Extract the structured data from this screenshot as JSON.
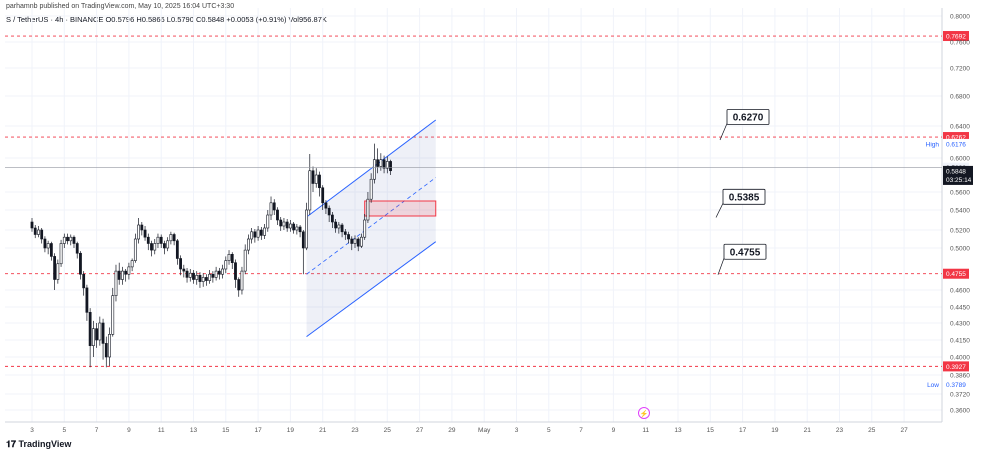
{
  "header": {
    "publish_text": "parhamnb published on TradingView.com, May 10, 2025 16:04 UTC+3:30",
    "symbol_text": "S / TetherUS · 4h · BINANCE  O0.5796  H0.5866  L0.5790  C0.5848  +0.0053 (+0.91%)  Vol956.87K"
  },
  "footer": {
    "logo_text": "TradingView"
  },
  "colors": {
    "up": "#26a69a",
    "down": "#131722",
    "level_line": "#f23645",
    "channel": "#2962ff",
    "zone": "#f23645"
  },
  "chart_data": {
    "type": "candlestick",
    "x_tick_labels": [
      "3",
      "5",
      "7",
      "9",
      "11",
      "13",
      "15",
      "17",
      "19",
      "21",
      "23",
      "25",
      "27",
      "29",
      "May",
      "3",
      "5",
      "7",
      "9",
      "11",
      "13",
      "15",
      "17",
      "19",
      "21",
      "23",
      "25",
      "27"
    ],
    "y_tick_labels": [
      "0.8000",
      "0.7600",
      "0.7200",
      "0.6800",
      "0.6400",
      "0.6000",
      "0.5600",
      "0.5400",
      "0.5200",
      "0.5000",
      "0.4600",
      "0.4450",
      "0.4300",
      "0.4150",
      "0.4000",
      "0.3860",
      "0.3720",
      "0.3600"
    ],
    "ylim": [
      0.352,
      0.806
    ],
    "horizontal_levels": [
      {
        "value": 0.7692,
        "label": "0.7692"
      },
      {
        "value": 0.6262,
        "label": "0.6262"
      },
      {
        "value": 0.4755,
        "label": "0.4755"
      },
      {
        "value": 0.3927,
        "label": "0.3927"
      }
    ],
    "price_badges": {
      "high_label": "High",
      "high_value": "0.6176",
      "low_label": "Low",
      "low_value": "0.3789",
      "last_value": "0.5848",
      "countdown": "03:25:14",
      "prev_value": "0.5886"
    },
    "annotations": [
      "0.6270",
      "0.5385",
      "0.4755"
    ],
    "channel": {
      "upper": [
        {
          "x": 10.5,
          "y": 0.533
        },
        {
          "x": 14.5,
          "y": 0.648
        }
      ],
      "lower": [
        {
          "x": 10.5,
          "y": 0.418
        },
        {
          "x": 14.5,
          "y": 0.507
        }
      ],
      "mid": [
        {
          "x": 10.5,
          "y": 0.475
        },
        {
          "x": 14.5,
          "y": 0.577
        }
      ]
    },
    "zone": {
      "x_from": 12.3,
      "x_to": 14.5,
      "y_from": 0.534,
      "y_to": 0.55
    },
    "candles": [
      [
        2,
        0.528,
        0.522,
        0.532,
        0.518
      ],
      [
        2.1,
        0.522,
        0.515,
        0.525,
        0.511
      ],
      [
        2.2,
        0.515,
        0.52,
        0.524,
        0.512
      ],
      [
        2.3,
        0.52,
        0.51,
        0.522,
        0.505
      ],
      [
        2.4,
        0.51,
        0.5,
        0.513,
        0.496
      ],
      [
        2.5,
        0.5,
        0.505,
        0.508,
        0.494
      ],
      [
        2.6,
        0.505,
        0.492,
        0.507,
        0.488
      ],
      [
        2.7,
        0.492,
        0.47,
        0.495,
        0.46
      ],
      [
        2.8,
        0.47,
        0.485,
        0.489,
        0.466
      ],
      [
        2.9,
        0.485,
        0.505,
        0.509,
        0.482
      ],
      [
        3.0,
        0.505,
        0.512,
        0.516,
        0.5
      ],
      [
        3.1,
        0.512,
        0.508,
        0.516,
        0.504
      ],
      [
        3.2,
        0.508,
        0.512,
        0.515,
        0.503
      ],
      [
        3.3,
        0.512,
        0.505,
        0.514,
        0.5
      ],
      [
        3.4,
        0.505,
        0.495,
        0.507,
        0.49
      ],
      [
        3.5,
        0.495,
        0.475,
        0.497,
        0.47
      ],
      [
        3.6,
        0.475,
        0.462,
        0.478,
        0.455
      ],
      [
        3.7,
        0.462,
        0.44,
        0.465,
        0.432
      ],
      [
        3.8,
        0.44,
        0.41,
        0.444,
        0.392
      ],
      [
        3.9,
        0.41,
        0.425,
        0.432,
        0.4
      ],
      [
        4.0,
        0.425,
        0.415,
        0.43,
        0.408
      ],
      [
        4.1,
        0.415,
        0.43,
        0.436,
        0.41
      ],
      [
        4.2,
        0.43,
        0.412,
        0.434,
        0.398
      ],
      [
        4.3,
        0.412,
        0.4,
        0.418,
        0.392
      ],
      [
        4.4,
        0.4,
        0.42,
        0.426,
        0.393
      ],
      [
        4.5,
        0.42,
        0.455,
        0.462,
        0.418
      ],
      [
        4.6,
        0.455,
        0.478,
        0.484,
        0.45
      ],
      [
        4.7,
        0.478,
        0.47,
        0.486,
        0.465
      ],
      [
        4.8,
        0.47,
        0.478,
        0.482,
        0.465
      ],
      [
        4.9,
        0.478,
        0.475,
        0.48,
        0.468
      ],
      [
        5.0,
        0.475,
        0.482,
        0.486,
        0.47
      ],
      [
        5.1,
        0.482,
        0.488,
        0.49,
        0.478
      ],
      [
        5.2,
        0.488,
        0.51,
        0.516,
        0.486
      ],
      [
        5.3,
        0.51,
        0.525,
        0.532,
        0.505
      ],
      [
        5.4,
        0.525,
        0.52,
        0.528,
        0.514
      ],
      [
        5.5,
        0.52,
        0.512,
        0.524,
        0.508
      ],
      [
        5.6,
        0.512,
        0.505,
        0.516,
        0.498
      ],
      [
        5.7,
        0.505,
        0.498,
        0.508,
        0.492
      ],
      [
        5.8,
        0.498,
        0.505,
        0.51,
        0.494
      ],
      [
        5.9,
        0.505,
        0.512,
        0.516,
        0.5
      ],
      [
        6.0,
        0.512,
        0.505,
        0.515,
        0.5
      ],
      [
        6.1,
        0.505,
        0.5,
        0.508,
        0.494
      ],
      [
        6.2,
        0.5,
        0.508,
        0.512,
        0.497
      ],
      [
        6.3,
        0.508,
        0.515,
        0.518,
        0.504
      ],
      [
        6.4,
        0.515,
        0.508,
        0.517,
        0.503
      ],
      [
        6.5,
        0.508,
        0.49,
        0.51,
        0.484
      ],
      [
        6.6,
        0.49,
        0.48,
        0.493,
        0.474
      ],
      [
        6.7,
        0.48,
        0.478,
        0.484,
        0.472
      ],
      [
        6.8,
        0.478,
        0.472,
        0.481,
        0.467
      ],
      [
        6.9,
        0.472,
        0.476,
        0.48,
        0.468
      ],
      [
        7.0,
        0.476,
        0.47,
        0.479,
        0.466
      ],
      [
        7.1,
        0.47,
        0.474,
        0.478,
        0.465
      ],
      [
        7.2,
        0.474,
        0.468,
        0.477,
        0.462
      ],
      [
        7.3,
        0.468,
        0.472,
        0.476,
        0.463
      ],
      [
        7.4,
        0.472,
        0.469,
        0.475,
        0.464
      ],
      [
        7.5,
        0.469,
        0.475,
        0.479,
        0.466
      ],
      [
        7.6,
        0.475,
        0.472,
        0.478,
        0.467
      ],
      [
        7.7,
        0.472,
        0.478,
        0.482,
        0.469
      ],
      [
        7.8,
        0.478,
        0.475,
        0.481,
        0.47
      ],
      [
        7.9,
        0.475,
        0.48,
        0.484,
        0.471
      ],
      [
        8.0,
        0.48,
        0.488,
        0.492,
        0.476
      ],
      [
        8.1,
        0.488,
        0.494,
        0.498,
        0.484
      ],
      [
        8.2,
        0.494,
        0.486,
        0.496,
        0.48
      ],
      [
        8.3,
        0.486,
        0.47,
        0.489,
        0.462
      ],
      [
        8.4,
        0.47,
        0.46,
        0.472,
        0.454
      ],
      [
        8.5,
        0.46,
        0.478,
        0.482,
        0.456
      ],
      [
        8.6,
        0.478,
        0.498,
        0.504,
        0.475
      ],
      [
        8.7,
        0.498,
        0.51,
        0.515,
        0.494
      ],
      [
        8.8,
        0.51,
        0.518,
        0.522,
        0.505
      ],
      [
        8.9,
        0.518,
        0.512,
        0.521,
        0.506
      ],
      [
        9.0,
        0.512,
        0.52,
        0.524,
        0.508
      ],
      [
        9.1,
        0.52,
        0.514,
        0.523,
        0.509
      ],
      [
        9.2,
        0.514,
        0.522,
        0.526,
        0.51
      ],
      [
        9.3,
        0.522,
        0.535,
        0.54,
        0.518
      ],
      [
        9.4,
        0.535,
        0.548,
        0.555,
        0.53
      ],
      [
        9.5,
        0.548,
        0.54,
        0.552,
        0.535
      ],
      [
        9.6,
        0.54,
        0.53,
        0.543,
        0.525
      ],
      [
        9.7,
        0.53,
        0.524,
        0.533,
        0.519
      ],
      [
        9.8,
        0.524,
        0.528,
        0.532,
        0.52
      ],
      [
        9.9,
        0.528,
        0.522,
        0.531,
        0.518
      ],
      [
        10.0,
        0.522,
        0.526,
        0.53,
        0.518
      ],
      [
        10.1,
        0.526,
        0.52,
        0.528,
        0.516
      ],
      [
        10.2,
        0.52,
        0.523,
        0.526,
        0.515
      ],
      [
        10.3,
        0.523,
        0.518,
        0.525,
        0.512
      ],
      [
        10.4,
        0.518,
        0.5,
        0.52,
        0.475
      ],
      [
        10.5,
        0.5,
        0.54,
        0.548,
        0.498
      ],
      [
        10.6,
        0.54,
        0.585,
        0.605,
        0.535
      ],
      [
        10.7,
        0.585,
        0.57,
        0.59,
        0.56
      ],
      [
        10.8,
        0.57,
        0.58,
        0.588,
        0.565
      ],
      [
        10.9,
        0.58,
        0.565,
        0.584,
        0.555
      ],
      [
        11.0,
        0.565,
        0.548,
        0.568,
        0.54
      ],
      [
        11.1,
        0.548,
        0.542,
        0.551,
        0.536
      ],
      [
        11.2,
        0.542,
        0.535,
        0.545,
        0.528
      ],
      [
        11.3,
        0.535,
        0.528,
        0.538,
        0.522
      ],
      [
        11.4,
        0.528,
        0.522,
        0.531,
        0.517
      ],
      [
        11.5,
        0.522,
        0.525,
        0.528,
        0.516
      ],
      [
        11.6,
        0.525,
        0.518,
        0.527,
        0.512
      ],
      [
        11.7,
        0.518,
        0.515,
        0.521,
        0.509
      ],
      [
        11.8,
        0.515,
        0.51,
        0.518,
        0.505
      ],
      [
        11.9,
        0.51,
        0.505,
        0.513,
        0.498
      ],
      [
        12.0,
        0.505,
        0.51,
        0.514,
        0.5
      ],
      [
        12.1,
        0.51,
        0.502,
        0.512,
        0.497
      ],
      [
        12.2,
        0.502,
        0.512,
        0.516,
        0.5
      ],
      [
        12.3,
        0.512,
        0.53,
        0.536,
        0.509
      ],
      [
        12.4,
        0.53,
        0.552,
        0.56,
        0.527
      ],
      [
        12.5,
        0.552,
        0.575,
        0.582,
        0.548
      ],
      [
        12.6,
        0.575,
        0.598,
        0.618,
        0.57
      ],
      [
        12.7,
        0.598,
        0.59,
        0.612,
        0.582
      ],
      [
        12.8,
        0.59,
        0.598,
        0.606,
        0.585
      ],
      [
        12.9,
        0.598,
        0.588,
        0.603,
        0.582
      ],
      [
        13.0,
        0.588,
        0.596,
        0.602,
        0.582
      ],
      [
        13.1,
        0.596,
        0.585,
        0.598,
        0.58
      ]
    ]
  }
}
